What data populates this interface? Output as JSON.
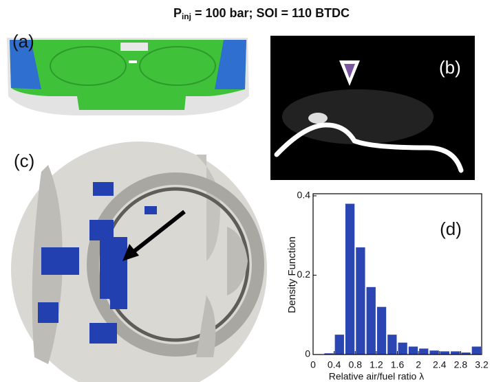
{
  "chart_data": {
    "type": "histogram",
    "title": {
      "symbol": "P",
      "subscript": "inj",
      "text": " = 100 bar; SOI = 110 BTDC"
    },
    "panel_label": "(d)",
    "xlabel": "Relative air/fuel ratio λ",
    "ylabel": "Density Function",
    "bins": [
      0.2,
      0.4,
      0.6,
      0.8,
      1.0,
      1.2,
      1.4,
      1.6,
      1.8,
      2.0,
      2.2,
      2.4,
      2.6,
      2.8,
      3.0,
      3.2
    ],
    "counts": [
      0.003,
      0.05,
      0.38,
      0.27,
      0.17,
      0.12,
      0.05,
      0.03,
      0.02,
      0.015,
      0.01,
      0.008,
      0.008,
      0.005,
      0.02
    ],
    "color": "#2b45b3",
    "xlim": [
      0,
      3.2
    ],
    "ylim": [
      0,
      0.4
    ],
    "xticks": [
      0,
      0.4,
      0.8,
      1.2,
      1.6,
      2,
      2.4,
      2.8,
      3.2
    ],
    "yticks": [
      0,
      0.2,
      0.4
    ]
  },
  "panels": {
    "a": "(a)",
    "b": "(b)",
    "c": "(c)"
  }
}
